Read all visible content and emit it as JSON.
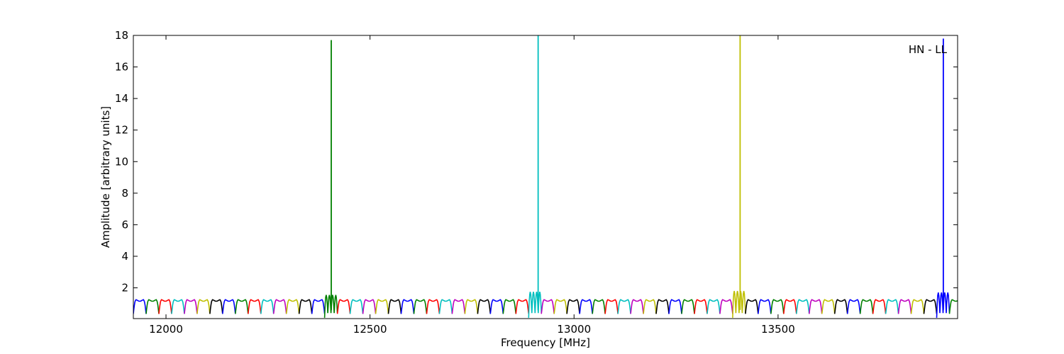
{
  "chart_data": {
    "type": "line",
    "xlabel": "Frequency [MHz]",
    "ylabel": "Amplitude [arbitrary units]",
    "annotation": "HN - LL",
    "xlim": [
      11920,
      13940
    ],
    "ylim": [
      0.05,
      18
    ],
    "x_ticks": [
      12000,
      12500,
      13000,
      13500
    ],
    "y_ticks": [
      2,
      4,
      6,
      8,
      10,
      12,
      14,
      16,
      18
    ],
    "grid": false,
    "legend": "none",
    "channel_width_mhz": 31.25,
    "channel_color_cycle": [
      "#0000ff",
      "#008000",
      "#ff0000",
      "#00bfbf",
      "#bf00bf",
      "#bfbf00",
      "#000000"
    ],
    "channel_shape": {
      "plateau_amplitude": 1.2,
      "edge_minimum_amplitude": 0.35
    },
    "spikes": [
      {
        "x": 12405,
        "peak": 17.7,
        "color": "#008000",
        "ripple_peak": 1.55
      },
      {
        "x": 12912,
        "peak": 18.0,
        "color": "#00bfbf",
        "ripple_peak": 1.75
      },
      {
        "x": 13407,
        "peak": 18.0,
        "color": "#bfbf00",
        "ripple_peak": 1.8
      },
      {
        "x": 13905,
        "peak": 17.8,
        "color": "#0000ff",
        "ripple_peak": 1.7
      }
    ]
  }
}
